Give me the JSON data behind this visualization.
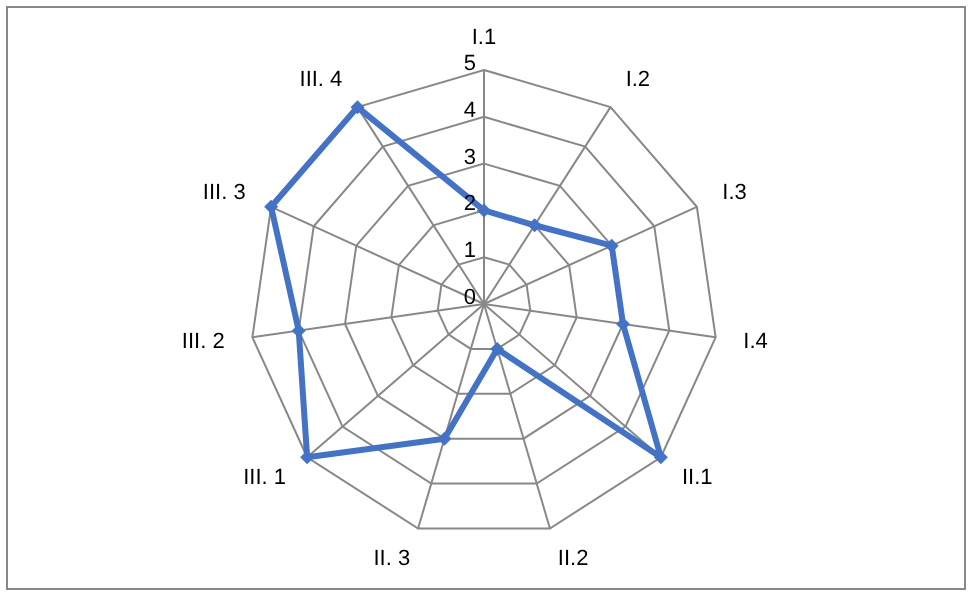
{
  "chart_data": {
    "type": "radar",
    "categories": [
      "I.1",
      "I.2",
      "I.3",
      "I.4",
      "II.1",
      "II.2",
      "II. 3",
      "III. 1",
      "III. 2",
      "III. 3",
      "III. 4"
    ],
    "series": [
      {
        "color": "#4472c4",
        "values": [
          2,
          2,
          3,
          3,
          5,
          1,
          3,
          5,
          4,
          5,
          5
        ]
      }
    ],
    "ylim": [
      0,
      5
    ],
    "yticks": [
      0,
      1,
      2,
      3,
      4,
      5
    ],
    "grid": true,
    "legend": false,
    "marker": "diamond",
    "line_style": "solid"
  }
}
